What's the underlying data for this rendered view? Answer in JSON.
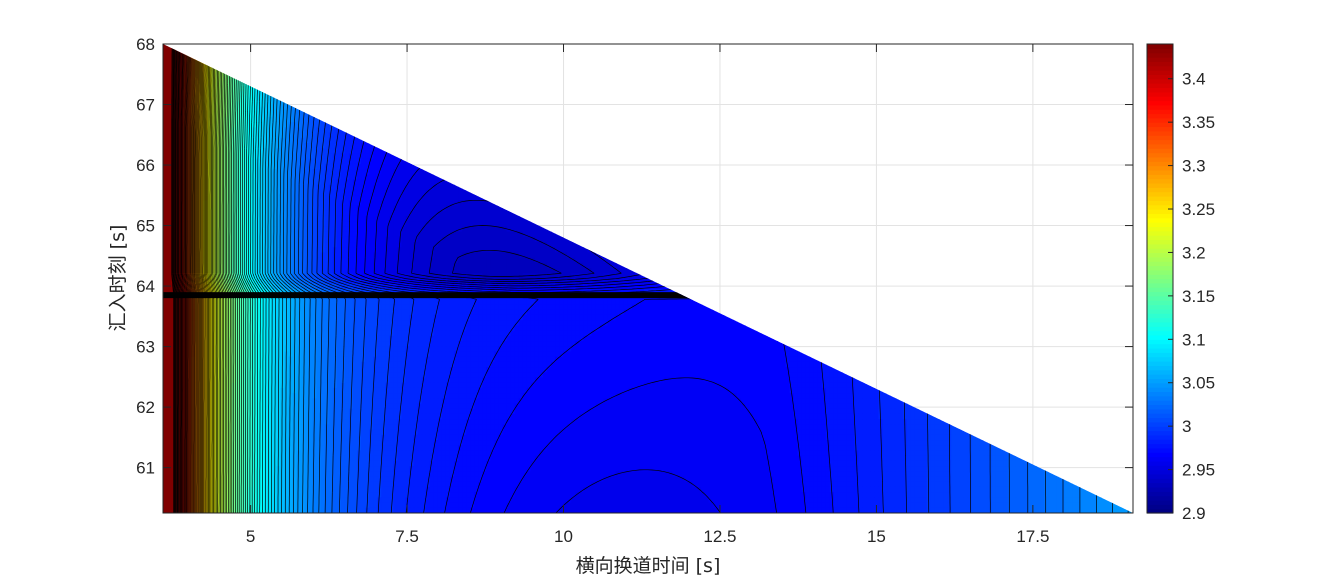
{
  "chart_data": {
    "type": "heatmap",
    "subtype": "filled-contour",
    "title": "",
    "xlabel": "横向换道时间 [s]",
    "ylabel": "汇入时刻 [s]",
    "xlim": [
      3.6,
      19.1
    ],
    "ylim": [
      60.25,
      68
    ],
    "x_ticks": [
      5,
      7.5,
      10,
      12.5,
      15,
      17.5
    ],
    "x_tick_labels": [
      "5",
      "7.5",
      "10",
      "12.5",
      "15",
      "17.5"
    ],
    "y_ticks": [
      61,
      62,
      63,
      64,
      65,
      66,
      67,
      68
    ],
    "y_tick_labels": [
      "61",
      "62",
      "63",
      "64",
      "65",
      "66",
      "67",
      "68"
    ],
    "colorbar": {
      "colormap": "jet",
      "clim": [
        2.9,
        3.44
      ],
      "ticks": [
        2.9,
        2.95,
        3.0,
        3.05,
        3.1,
        3.15,
        3.2,
        3.25,
        3.3,
        3.35,
        3.4
      ],
      "tick_labels": [
        "2.9",
        "2.95",
        "3",
        "3.05",
        "3.1",
        "3.15",
        "3.2",
        "3.25",
        "3.3",
        "3.35",
        "3.4"
      ]
    },
    "valid_region_boundary": [
      {
        "x": 3.6,
        "y": 68.0
      },
      {
        "x": 12.1,
        "y": 63.85
      },
      {
        "x": 19.1,
        "y": 60.25
      }
    ],
    "discontinuity_y": 63.85,
    "contour_levels_step": 0.005,
    "value_samples": [
      {
        "x": 3.7,
        "y": 62.0,
        "value": 3.43
      },
      {
        "x": 4.0,
        "y": 62.0,
        "value": 3.33
      },
      {
        "x": 4.5,
        "y": 62.0,
        "value": 3.19
      },
      {
        "x": 5.0,
        "y": 62.0,
        "value": 3.1
      },
      {
        "x": 6.0,
        "y": 62.0,
        "value": 3.03
      },
      {
        "x": 8.0,
        "y": 62.0,
        "value": 2.99
      },
      {
        "x": 10.0,
        "y": 61.0,
        "value": 2.975
      },
      {
        "x": 10.0,
        "y": 62.5,
        "value": 2.985
      },
      {
        "x": 12.5,
        "y": 62.0,
        "value": 2.99
      },
      {
        "x": 15.0,
        "y": 61.0,
        "value": 3.02
      },
      {
        "x": 17.5,
        "y": 60.7,
        "value": 3.05
      },
      {
        "x": 18.8,
        "y": 60.4,
        "value": 3.08
      },
      {
        "x": 7.5,
        "y": 65.0,
        "value": 2.96
      },
      {
        "x": 10.0,
        "y": 64.3,
        "value": 2.92
      }
    ],
    "grid": true,
    "legend": "none"
  }
}
